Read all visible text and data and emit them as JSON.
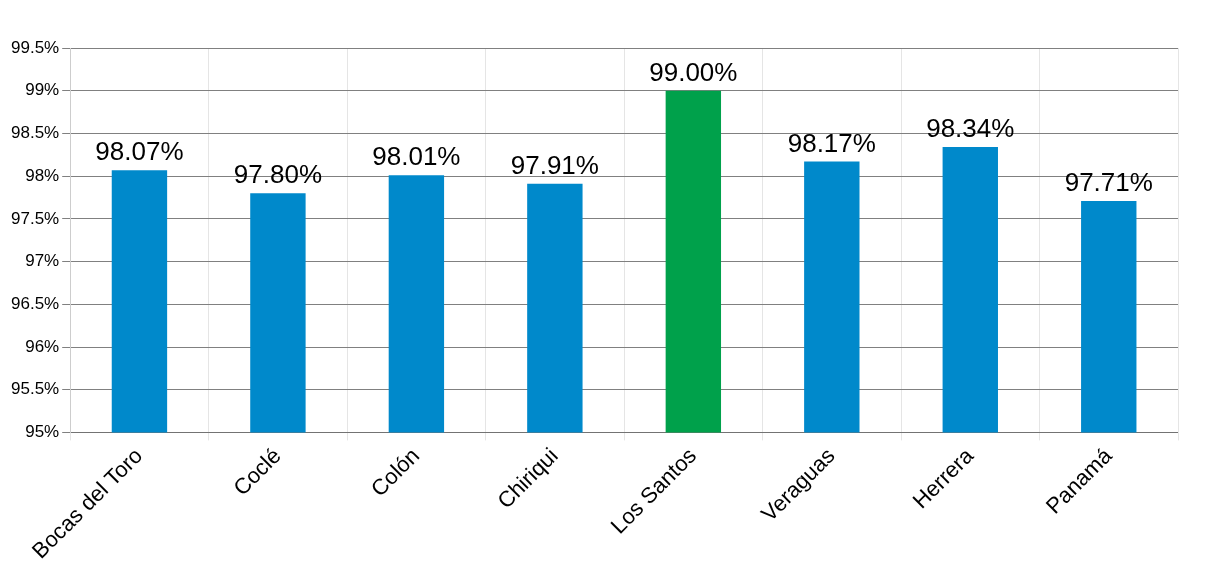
{
  "chart_data": {
    "type": "bar",
    "categories": [
      "Bocas del Toro",
      "Coclé",
      "Colón",
      "Chiriqui",
      "Los Santos",
      "Veraguas",
      "Herrera",
      "Panamá"
    ],
    "values": [
      98.07,
      97.8,
      98.01,
      97.91,
      99.0,
      98.17,
      98.34,
      97.71
    ],
    "colors": [
      "#0089cb",
      "#0089cb",
      "#0089cb",
      "#0089cb",
      "#00a14b",
      "#0089cb",
      "#0089cb",
      "#0089cb"
    ],
    "value_labels": [
      "98.07%",
      "97.80%",
      "98.01%",
      "97.91%",
      "99.00%",
      "98.17%",
      "98.34%",
      "97.71%"
    ],
    "ylim": [
      95,
      99.5
    ],
    "yticks": [
      {
        "value": 95,
        "label": "95%"
      },
      {
        "value": 95.5,
        "label": "95.5%"
      },
      {
        "value": 96,
        "label": "96%"
      },
      {
        "value": 96.5,
        "label": "96.5%"
      },
      {
        "value": 97,
        "label": "97%"
      },
      {
        "value": 97.5,
        "label": "97.5%"
      },
      {
        "value": 98,
        "label": "98%"
      },
      {
        "value": 98.5,
        "label": "98.5%"
      },
      {
        "value": 99,
        "label": "99%"
      },
      {
        "value": 99.5,
        "label": "99.5%"
      }
    ],
    "grid": true,
    "legend": false
  }
}
